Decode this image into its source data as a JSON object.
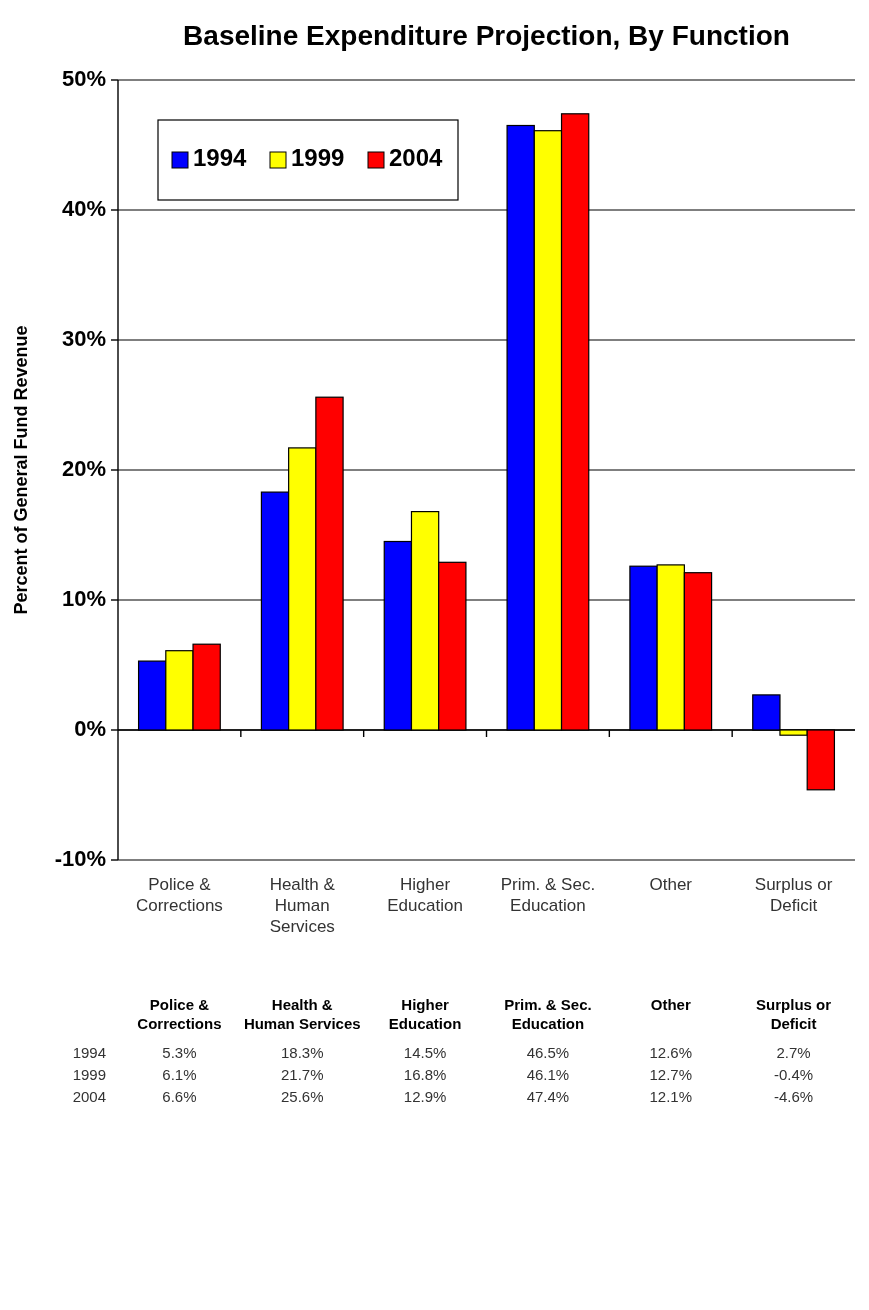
{
  "chart_data": {
    "type": "bar",
    "title": "Baseline Expenditure Projection, By Function",
    "ylabel": "Percent of General Fund Revenue",
    "categories": [
      "Police & Corrections",
      "Health & Human Services",
      "Higher Education",
      "Prim. & Sec. Education",
      "Other",
      "Surplus or Deficit"
    ],
    "series": [
      {
        "name": "1994",
        "color": "#0000ff",
        "values": [
          5.3,
          18.3,
          14.5,
          46.5,
          12.6,
          2.7
        ],
        "value_labels": [
          "5.3%",
          "18.3%",
          "14.5%",
          "46.5%",
          "12.6%",
          "2.7%"
        ]
      },
      {
        "name": "1999",
        "color": "#ffff00",
        "values": [
          6.1,
          21.7,
          16.8,
          46.1,
          12.7,
          -0.4
        ],
        "value_labels": [
          "6.1%",
          "21.7%",
          "16.8%",
          "46.1%",
          "12.7%",
          "-0.4%"
        ]
      },
      {
        "name": "2004",
        "color": "#ff0000",
        "values": [
          6.6,
          25.6,
          12.9,
          47.4,
          12.1,
          -4.6
        ],
        "value_labels": [
          "6.6%",
          "25.6%",
          "12.9%",
          "47.4%",
          "12.1%",
          "-4.6%"
        ]
      }
    ],
    "ylim": [
      -10,
      50
    ],
    "yticks": [
      {
        "value": -10,
        "label": "-10%"
      },
      {
        "value": 0,
        "label": "0%"
      },
      {
        "value": 10,
        "label": "10%"
      },
      {
        "value": 20,
        "label": "20%"
      },
      {
        "value": 30,
        "label": "30%"
      },
      {
        "value": 40,
        "label": "40%"
      },
      {
        "value": 50,
        "label": "50%"
      }
    ],
    "grid": "y",
    "legend": "top left"
  }
}
